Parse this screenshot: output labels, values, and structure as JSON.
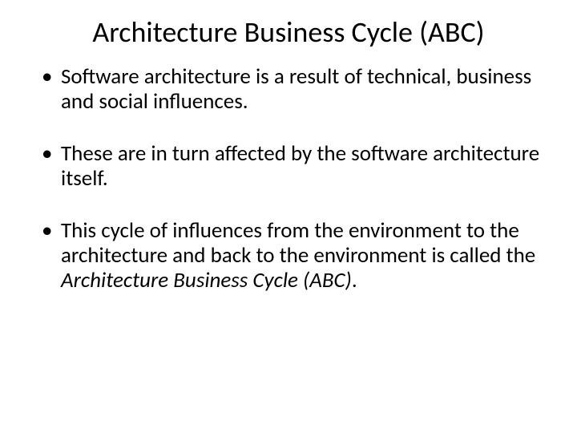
{
  "slide": {
    "title": "Architecture Business Cycle (ABC)",
    "title_fontsize": 36,
    "title_color": "#000000",
    "body_fontsize": 27,
    "body_color": "#000000",
    "line_height": 1.15,
    "background_color": "#ffffff",
    "bullets": [
      {
        "text": "Software architecture is a result of technical, business and social influences."
      },
      {
        "text": "These are in turn affected by the software architecture itself."
      },
      {
        "text_prefix": "This cycle of influences from the environment to the architecture and back to the environment is called the ",
        "text_italic": "Architecture Business Cycle (ABC)",
        "text_suffix": "."
      }
    ]
  }
}
